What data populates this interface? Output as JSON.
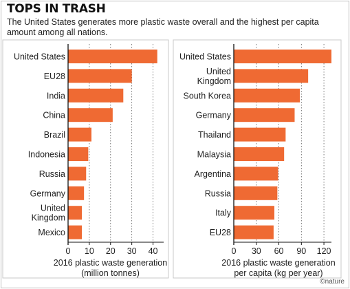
{
  "figure": {
    "title": "TOPS IN TRASH",
    "subtitle": "The United States generates more plastic waste overall and the highest per capita amount among all nations.",
    "credit": "©nature"
  },
  "chart_data": [
    {
      "type": "bar",
      "orientation": "horizontal",
      "categories": [
        "United States",
        "EU28",
        "India",
        "China",
        "Brazil",
        "Indonesia",
        "Russia",
        "Germany",
        "United Kingdom",
        "Mexico"
      ],
      "category_lines": [
        [
          "United States"
        ],
        [
          "EU28"
        ],
        [
          "India"
        ],
        [
          "China"
        ],
        [
          "Brazil"
        ],
        [
          "Indonesia"
        ],
        [
          "Russia"
        ],
        [
          "Germany"
        ],
        [
          "United",
          "Kingdom"
        ],
        [
          "Mexico"
        ]
      ],
      "values": [
        42,
        30,
        26,
        21,
        11,
        9.5,
        8.5,
        7.5,
        6.5,
        6.5
      ],
      "xlabel_lines": [
        "2016 plastic waste generation",
        "(million tonnes)"
      ],
      "xlim": [
        0,
        45
      ],
      "ticks": [
        0,
        10,
        20,
        30,
        40
      ],
      "grid": true,
      "bar_color": "#ef6a33"
    },
    {
      "type": "bar",
      "orientation": "horizontal",
      "categories": [
        "United States",
        "United Kingdom",
        "South Korea",
        "Germany",
        "Thailand",
        "Malaysia",
        "Argentina",
        "Russia",
        "Italy",
        "EU28"
      ],
      "category_lines": [
        [
          "United States"
        ],
        [
          "United",
          "Kingdom"
        ],
        [
          "South Korea"
        ],
        [
          "Germany"
        ],
        [
          "Thailand"
        ],
        [
          "Malaysia"
        ],
        [
          "Argentina"
        ],
        [
          "Russia"
        ],
        [
          "Italy"
        ],
        [
          "EU28"
        ]
      ],
      "values": [
        130,
        99,
        88,
        81,
        69,
        67,
        59,
        58,
        54,
        53
      ],
      "xlabel_lines": [
        "2016 plastic waste generation",
        "per capita (kg per year)"
      ],
      "xlim": [
        0,
        130
      ],
      "ticks": [
        0,
        30,
        60,
        90,
        120
      ],
      "grid": true,
      "bar_color": "#ef6a33"
    }
  ]
}
